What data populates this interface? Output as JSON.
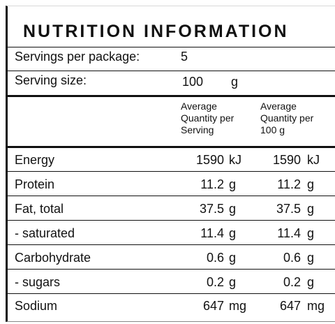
{
  "title": "NUTRITION INFORMATION",
  "servings_per_package": {
    "label": "Servings per package:",
    "value": "5"
  },
  "serving_size": {
    "label": "Serving size:",
    "value": "100",
    "unit": "g"
  },
  "columns": {
    "per_serving": [
      "Average",
      "Quantity per",
      "Serving"
    ],
    "per_100g": [
      "Average",
      "Quantity per",
      "100 g"
    ]
  },
  "rows": [
    {
      "label": "Energy",
      "serving": "1590",
      "serving_unit": "kJ",
      "per100": "1590",
      "per100_unit": "kJ"
    },
    {
      "label": "Protein",
      "serving": "11.2",
      "serving_unit": "g",
      "per100": "11.2",
      "per100_unit": "g"
    },
    {
      "label": "Fat, total",
      "serving": "37.5",
      "serving_unit": "g",
      "per100": "37.5",
      "per100_unit": "g"
    },
    {
      "label": "- saturated",
      "serving": "11.4",
      "serving_unit": "g",
      "per100": "11.4",
      "per100_unit": "g"
    },
    {
      "label": "Carbohydrate",
      "serving": "0.6",
      "serving_unit": "g",
      "per100": "0.6",
      "per100_unit": "g"
    },
    {
      "label": "- sugars",
      "serving": "0.2",
      "serving_unit": "g",
      "per100": "0.2",
      "per100_unit": "g"
    },
    {
      "label": "Sodium",
      "serving": "647",
      "serving_unit": "mg",
      "per100": "647",
      "per100_unit": "mg"
    }
  ]
}
